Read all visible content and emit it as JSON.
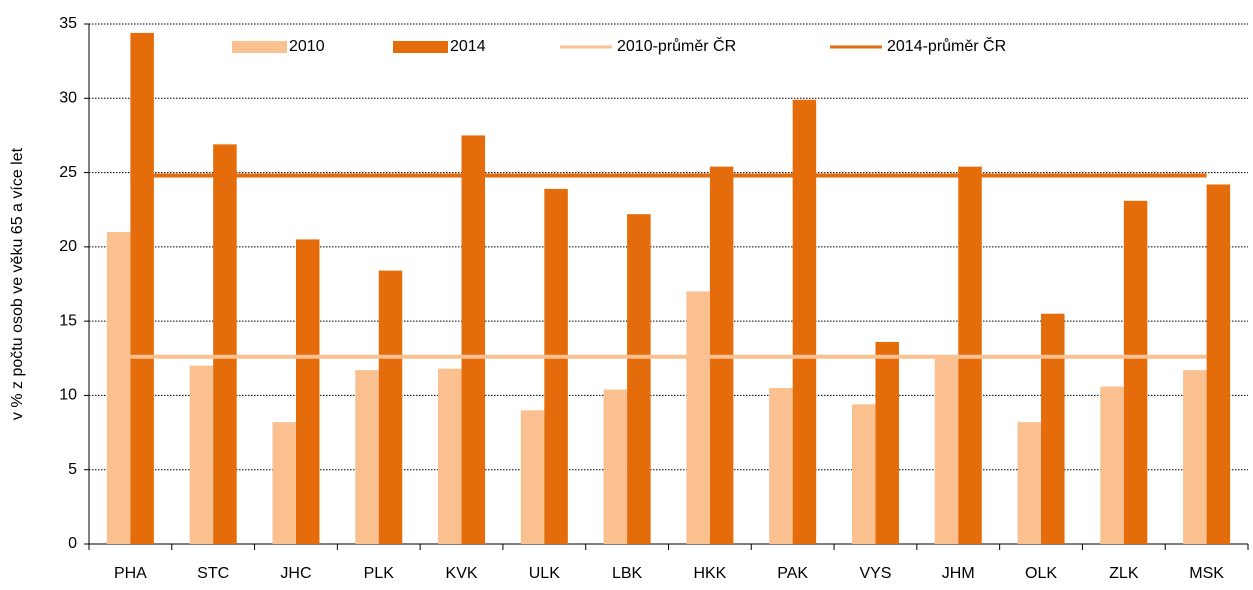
{
  "chart_data": {
    "type": "bar",
    "y_label": "v % z počtu osob ve věku 65 a více let",
    "categories": [
      "PHA",
      "STC",
      "JHC",
      "PLK",
      "KVK",
      "ULK",
      "LBK",
      "HKK",
      "PAK",
      "VYS",
      "JHM",
      "OLK",
      "ZLK",
      "MSK"
    ],
    "series": [
      {
        "name": "2010",
        "type": "bar",
        "color": "#fac090",
        "values": [
          21.0,
          12.0,
          8.2,
          11.7,
          11.8,
          9.0,
          10.4,
          17.0,
          10.5,
          9.4,
          12.7,
          8.2,
          10.6,
          11.7
        ]
      },
      {
        "name": "2014",
        "type": "bar",
        "color": "#e46c0a",
        "values": [
          34.4,
          26.9,
          20.5,
          18.4,
          27.5,
          23.9,
          22.2,
          25.4,
          29.9,
          13.6,
          25.4,
          15.5,
          23.1,
          24.2
        ]
      },
      {
        "name": "2010-průměr ČR",
        "type": "line",
        "color": "#fac090",
        "values": [
          12.6,
          12.6,
          12.6,
          12.6,
          12.6,
          12.6,
          12.6,
          12.6,
          12.6,
          12.6,
          12.6,
          12.6,
          12.6,
          12.6
        ]
      },
      {
        "name": "2014-průměr ČR",
        "type": "line",
        "color": "#e46c0a",
        "values": [
          24.8,
          24.8,
          24.8,
          24.8,
          24.8,
          24.8,
          24.8,
          24.8,
          24.8,
          24.8,
          24.8,
          24.8,
          24.8,
          24.8
        ]
      }
    ],
    "ylim": [
      0,
      35
    ],
    "yticks": [
      0,
      5,
      10,
      15,
      20,
      25,
      30,
      35
    ],
    "grid": true,
    "legend": "top"
  }
}
